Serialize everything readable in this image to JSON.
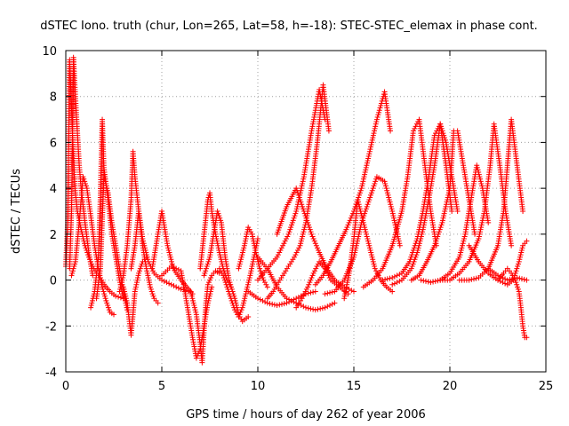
{
  "chart_data": {
    "type": "scatter",
    "title": "dSTEC Iono. truth (chur, Lon=265, Lat=58, h=-18): STEC-STEC_elemax in phase cont.",
    "xlabel": "GPS time / hours of day 262 of year 2006",
    "ylabel": "dSTEC  / TECUs",
    "xlim": [
      0,
      25
    ],
    "ylim": [
      -4,
      10
    ],
    "xticks": [
      0,
      5,
      10,
      15,
      20,
      25
    ],
    "yticks": [
      -4,
      -2,
      0,
      2,
      4,
      6,
      8,
      10
    ],
    "grid": true,
    "marker": "plus",
    "color": "#ff0000",
    "series": [
      {
        "x": [
          0.0,
          0.1,
          0.2,
          0.3,
          0.4,
          0.5,
          0.6,
          0.8,
          1.0,
          1.2,
          1.4,
          1.6,
          1.8,
          2.0,
          2.3,
          2.6,
          3.0
        ],
        "y": [
          0.6,
          2.5,
          9.6,
          7.5,
          5.2,
          3.8,
          3.0,
          2.2,
          1.5,
          1.0,
          0.6,
          0.3,
          0.1,
          -0.2,
          -0.5,
          -0.7,
          -0.8
        ]
      },
      {
        "x": [
          0.2,
          0.3,
          0.4,
          0.5,
          0.6,
          0.7,
          0.8,
          1.0,
          1.2,
          1.4
        ],
        "y": [
          0.5,
          3.0,
          9.7,
          8.0,
          6.5,
          5.0,
          4.0,
          2.5,
          1.2,
          0.2
        ]
      },
      {
        "x": [
          0.3,
          0.5,
          0.7,
          0.9,
          1.1,
          1.3,
          1.5,
          1.7,
          1.9,
          2.1,
          2.3,
          2.5
        ],
        "y": [
          0.2,
          0.8,
          2.5,
          4.5,
          4.0,
          2.8,
          1.5,
          0.5,
          -0.3,
          -0.9,
          -1.4,
          -1.5
        ]
      },
      {
        "x": [
          1.3,
          1.5,
          1.7,
          1.8,
          1.9,
          2.0,
          2.2,
          2.4,
          2.6,
          2.8,
          3.0,
          3.2
        ],
        "y": [
          -1.2,
          -0.5,
          1.0,
          3.5,
          7.0,
          4.5,
          3.8,
          2.5,
          1.5,
          0.5,
          -0.5,
          -1.3
        ]
      },
      {
        "x": [
          1.6,
          1.8,
          2.0,
          2.2,
          2.4,
          2.6,
          2.8,
          3.0
        ],
        "y": [
          -0.8,
          0.5,
          4.8,
          3.5,
          2.0,
          1.0,
          0.0,
          -0.8
        ]
      },
      {
        "x": [
          2.8,
          3.0,
          3.2,
          3.4,
          3.5,
          3.6,
          3.8,
          4.0,
          4.2,
          4.4,
          4.6,
          4.8
        ],
        "y": [
          -0.5,
          0.2,
          1.5,
          3.5,
          5.6,
          4.5,
          3.0,
          1.5,
          0.5,
          -0.3,
          -0.8,
          -1.0
        ]
      },
      {
        "x": [
          3.0,
          3.2,
          3.4,
          3.5,
          3.6,
          3.8,
          4.0,
          4.2
        ],
        "y": [
          -0.3,
          -1.0,
          -2.4,
          -1.5,
          -0.5,
          0.3,
          0.8,
          1.0
        ]
      },
      {
        "x": [
          3.4,
          3.6,
          3.8,
          4.0,
          4.3,
          4.6,
          5.0,
          5.5,
          6.0,
          6.5
        ],
        "y": [
          0.5,
          1.5,
          3.0,
          1.8,
          0.8,
          0.3,
          0.0,
          -0.2,
          -0.4,
          -0.5
        ]
      },
      {
        "x": [
          4.5,
          4.8,
          5.0,
          5.3,
          5.6,
          6.0,
          6.3,
          6.6
        ],
        "y": [
          0.5,
          2.0,
          3.0,
          1.5,
          0.5,
          0.0,
          -0.3,
          -0.6
        ]
      },
      {
        "x": [
          5.0,
          5.5,
          6.0,
          6.2,
          6.4,
          6.6,
          6.8,
          7.0,
          7.2,
          7.4,
          7.6
        ],
        "y": [
          0.2,
          0.6,
          0.4,
          -0.5,
          -1.5,
          -2.5,
          -3.4,
          -3.0,
          -2.0,
          -1.0,
          -0.3
        ]
      },
      {
        "x": [
          6.5,
          6.8,
          7.0,
          7.1,
          7.2,
          7.3,
          7.4,
          7.6,
          7.8,
          8.0
        ],
        "y": [
          -0.5,
          -1.5,
          -2.8,
          -3.6,
          -2.2,
          -1.0,
          -0.2,
          0.2,
          0.4,
          0.3
        ]
      },
      {
        "x": [
          7.0,
          7.2,
          7.4,
          7.5,
          7.6,
          7.8,
          8.0,
          8.2,
          8.4,
          8.6
        ],
        "y": [
          0.5,
          2.0,
          3.5,
          3.8,
          3.0,
          2.0,
          1.2,
          0.5,
          0.0,
          -0.3
        ]
      },
      {
        "x": [
          7.2,
          7.5,
          7.7,
          7.9,
          8.1,
          8.3,
          8.5,
          8.8,
          9.0,
          9.2,
          9.5
        ],
        "y": [
          0.2,
          1.0,
          2.0,
          3.0,
          2.5,
          1.0,
          0.0,
          -0.8,
          -1.5,
          -1.8,
          -1.6
        ]
      },
      {
        "x": [
          8.0,
          8.2,
          8.4,
          8.6,
          8.8,
          9.0,
          9.2,
          9.4,
          9.6,
          9.8,
          10.0
        ],
        "y": [
          0.5,
          0.2,
          -0.3,
          -0.8,
          -1.3,
          -1.6,
          -1.2,
          -0.5,
          0.2,
          1.0,
          1.8
        ]
      },
      {
        "x": [
          9.0,
          9.3,
          9.5,
          9.7,
          9.9,
          10.1,
          10.3,
          10.5
        ],
        "y": [
          0.5,
          1.5,
          2.3,
          2.0,
          1.2,
          0.5,
          0.0,
          -0.3
        ]
      },
      {
        "x": [
          9.5,
          10.0,
          10.5,
          11.0,
          11.5,
          12.0,
          12.5,
          13.0
        ],
        "y": [
          -0.5,
          -0.8,
          -1.0,
          -1.1,
          -1.0,
          -0.8,
          -0.6,
          -0.5
        ]
      },
      {
        "x": [
          10.0,
          10.5,
          11.0,
          11.5,
          12.0,
          12.5,
          13.0,
          13.5,
          14.0
        ],
        "y": [
          1.0,
          0.5,
          -0.3,
          -0.8,
          -1.0,
          -1.2,
          -1.3,
          -1.2,
          -1.0
        ]
      },
      {
        "x": [
          10.5,
          10.8,
          11.0,
          11.3,
          11.6,
          11.9,
          12.2,
          12.5,
          12.8,
          13.1,
          13.4,
          13.7
        ],
        "y": [
          -0.8,
          -0.5,
          -0.2,
          0.2,
          0.6,
          1.0,
          1.5,
          2.5,
          4.0,
          6.0,
          8.5,
          6.5
        ]
      },
      {
        "x": [
          10.0,
          10.5,
          11.0,
          11.3,
          11.6,
          12.0,
          12.4,
          12.8,
          13.2,
          13.5
        ],
        "y": [
          0.0,
          0.5,
          1.0,
          1.5,
          2.0,
          3.0,
          4.5,
          6.5,
          8.3,
          7.0
        ]
      },
      {
        "x": [
          11.0,
          11.5,
          12.0,
          12.4,
          12.8,
          13.2,
          13.6,
          14.0,
          14.5,
          15.0
        ],
        "y": [
          2.0,
          3.2,
          4.0,
          3.0,
          2.0,
          1.2,
          0.5,
          0.0,
          -0.3,
          -0.5
        ]
      },
      {
        "x": [
          12.0,
          12.3,
          12.6,
          12.9,
          13.2,
          13.5,
          13.8,
          14.1,
          14.4,
          14.7
        ],
        "y": [
          -1.2,
          -0.8,
          -0.3,
          0.3,
          0.8,
          0.5,
          0.0,
          -0.2,
          -0.4,
          -0.6
        ]
      },
      {
        "x": [
          13.0,
          13.4,
          13.8,
          14.2,
          14.6,
          15.0,
          15.4,
          15.8,
          16.2,
          16.6,
          16.9
        ],
        "y": [
          -0.2,
          0.2,
          0.8,
          1.5,
          2.2,
          3.0,
          4.0,
          5.5,
          7.0,
          8.2,
          6.5
        ]
      },
      {
        "x": [
          13.5,
          14.0,
          14.5,
          15.0,
          15.4,
          15.8,
          16.2,
          16.6,
          17.0,
          17.4
        ],
        "y": [
          -0.6,
          -0.5,
          0.0,
          1.0,
          2.5,
          3.5,
          4.5,
          4.3,
          3.0,
          1.5
        ]
      },
      {
        "x": [
          14.5,
          14.8,
          15.0,
          15.2,
          15.5,
          15.8,
          16.1,
          16.4,
          16.7,
          17.0
        ],
        "y": [
          -0.8,
          0.5,
          1.8,
          3.5,
          2.5,
          1.5,
          0.5,
          0.0,
          -0.3,
          -0.5
        ]
      },
      {
        "x": [
          15.5,
          16.0,
          16.5,
          17.0,
          17.5,
          17.8,
          18.1,
          18.4,
          18.7,
          19.0,
          19.3
        ],
        "y": [
          -0.3,
          0.0,
          0.5,
          1.5,
          3.0,
          4.5,
          6.5,
          7.0,
          5.0,
          3.0,
          1.5
        ]
      },
      {
        "x": [
          16.5,
          17.0,
          17.5,
          17.9,
          18.3,
          18.6,
          18.9,
          19.2,
          19.5,
          19.8,
          20.1
        ],
        "y": [
          0.0,
          0.1,
          0.3,
          0.8,
          1.8,
          3.0,
          4.5,
          6.3,
          6.8,
          5.0,
          3.0
        ]
      },
      {
        "x": [
          17.0,
          17.5,
          18.0,
          18.3,
          18.6,
          18.9,
          19.2,
          19.5,
          19.8,
          20.1,
          20.4
        ],
        "y": [
          -0.2,
          0.0,
          0.5,
          1.2,
          2.2,
          3.5,
          5.0,
          6.8,
          6.0,
          4.5,
          3.0
        ]
      },
      {
        "x": [
          18.0,
          18.4,
          18.8,
          19.2,
          19.6,
          20.0,
          20.2,
          20.4,
          20.7,
          21.0,
          21.3
        ],
        "y": [
          0.0,
          0.2,
          0.8,
          1.5,
          2.5,
          4.0,
          6.5,
          6.5,
          5.0,
          3.5,
          2.0
        ]
      },
      {
        "x": [
          18.5,
          19.0,
          19.5,
          20.0,
          20.5,
          20.8,
          21.1,
          21.4,
          21.7,
          22.0
        ],
        "y": [
          0.0,
          -0.1,
          0.0,
          0.3,
          1.0,
          2.0,
          3.5,
          5.0,
          4.0,
          2.5
        ]
      },
      {
        "x": [
          19.5,
          20.0,
          20.5,
          21.0,
          21.5,
          21.8,
          22.1,
          22.3,
          22.6,
          22.9,
          23.2
        ],
        "y": [
          0.0,
          0.0,
          0.3,
          0.8,
          1.8,
          3.0,
          5.0,
          6.8,
          5.0,
          3.0,
          1.5
        ]
      },
      {
        "x": [
          20.5,
          21.0,
          21.5,
          22.0,
          22.5,
          22.8,
          23.0,
          23.2,
          23.5,
          23.8
        ],
        "y": [
          0.0,
          0.0,
          0.1,
          0.5,
          1.5,
          3.0,
          5.0,
          7.0,
          5.0,
          3.0
        ]
      },
      {
        "x": [
          21.0,
          21.5,
          22.0,
          22.5,
          23.0,
          23.3,
          23.6,
          23.8,
          24.0
        ],
        "y": [
          1.5,
          0.8,
          0.3,
          0.0,
          -0.2,
          0.0,
          0.8,
          1.5,
          1.7
        ]
      },
      {
        "x": [
          22.5,
          22.8,
          23.0,
          23.2,
          23.4,
          23.6,
          23.7,
          23.8,
          23.9,
          24.0
        ],
        "y": [
          0.0,
          0.3,
          0.5,
          0.3,
          0.0,
          -0.5,
          -1.2,
          -2.0,
          -2.5,
          -2.5
        ]
      },
      {
        "x": [
          22.0,
          22.5,
          23.0,
          23.5,
          24.0
        ],
        "y": [
          0.5,
          0.2,
          0.0,
          0.1,
          0.0
        ]
      }
    ]
  }
}
